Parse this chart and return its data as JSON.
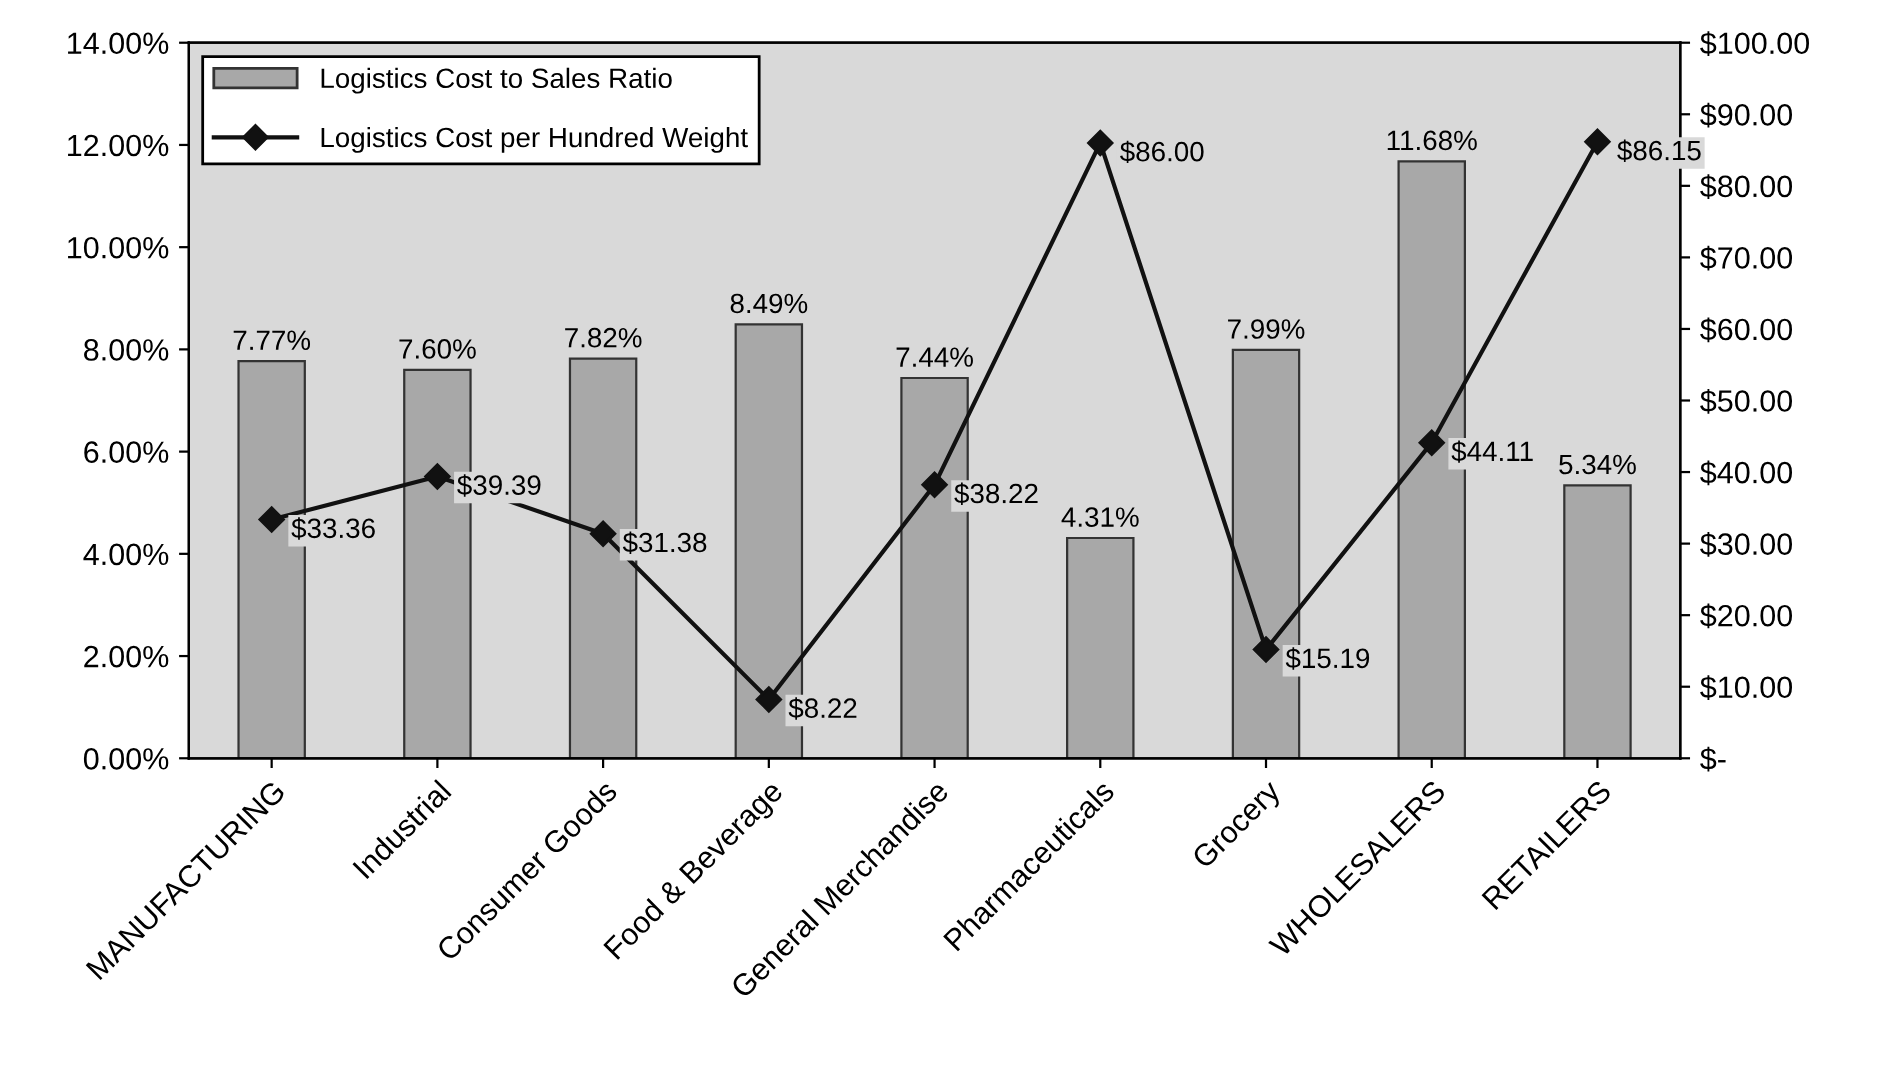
{
  "chart_data": {
    "type": "bar",
    "categories": [
      "MANUFACTURING",
      "Industrial",
      "Consumer Goods",
      "Food & Beverage",
      "General Merchandise",
      "Pharmaceuticals",
      "Grocery",
      "WHOLESALERS",
      "RETAILERS"
    ],
    "series": [
      {
        "name": "Logistics Cost to Sales Ratio",
        "color": "#a8a8a8",
        "values": [
          7.77,
          7.6,
          7.82,
          8.49,
          7.44,
          4.31,
          7.99,
          11.68,
          5.34
        ],
        "value_labels": [
          "7.77%",
          "7.60%",
          "7.82%",
          "8.49%",
          "7.44%",
          "4.31%",
          "7.99%",
          "11.68%",
          "5.34%"
        ]
      },
      {
        "name": "Logistics Cost per Hundred Weight",
        "type": "line",
        "axis": "y2",
        "color": "#111111",
        "marker": "diamond",
        "line_style": "solid",
        "values": [
          33.36,
          39.39,
          31.38,
          8.22,
          38.22,
          86.0,
          15.19,
          44.11,
          86.15
        ],
        "value_labels": [
          "$33.36",
          "$39.39",
          "$31.38",
          "$8.22",
          "$38.22",
          "$86.00",
          "$15.19",
          "$44.11",
          "$86.15"
        ]
      }
    ],
    "ylim": [
      0,
      14
    ],
    "yticks": [
      {
        "value": 0,
        "label": "0.00%"
      },
      {
        "value": 2,
        "label": "2.00%"
      },
      {
        "value": 4,
        "label": "4.00%"
      },
      {
        "value": 6,
        "label": "6.00%"
      },
      {
        "value": 8,
        "label": "8.00%"
      },
      {
        "value": 10,
        "label": "10.00%"
      },
      {
        "value": 12,
        "label": "12.00%"
      },
      {
        "value": 14,
        "label": "14.00%"
      }
    ],
    "y2lim": [
      0,
      100
    ],
    "y2ticks": [
      {
        "value": 0,
        "label": "$-"
      },
      {
        "value": 10,
        "label": "$10.00"
      },
      {
        "value": 20,
        "label": "$20.00"
      },
      {
        "value": 30,
        "label": "$30.00"
      },
      {
        "value": 40,
        "label": "$40.00"
      },
      {
        "value": 50,
        "label": "$50.00"
      },
      {
        "value": 60,
        "label": "$60.00"
      },
      {
        "value": 70,
        "label": "$70.00"
      },
      {
        "value": 80,
        "label": "$80.00"
      },
      {
        "value": 90,
        "label": "$90.00"
      },
      {
        "value": 100,
        "label": "$100.00"
      }
    ],
    "legend": "top left",
    "grid": false
  }
}
